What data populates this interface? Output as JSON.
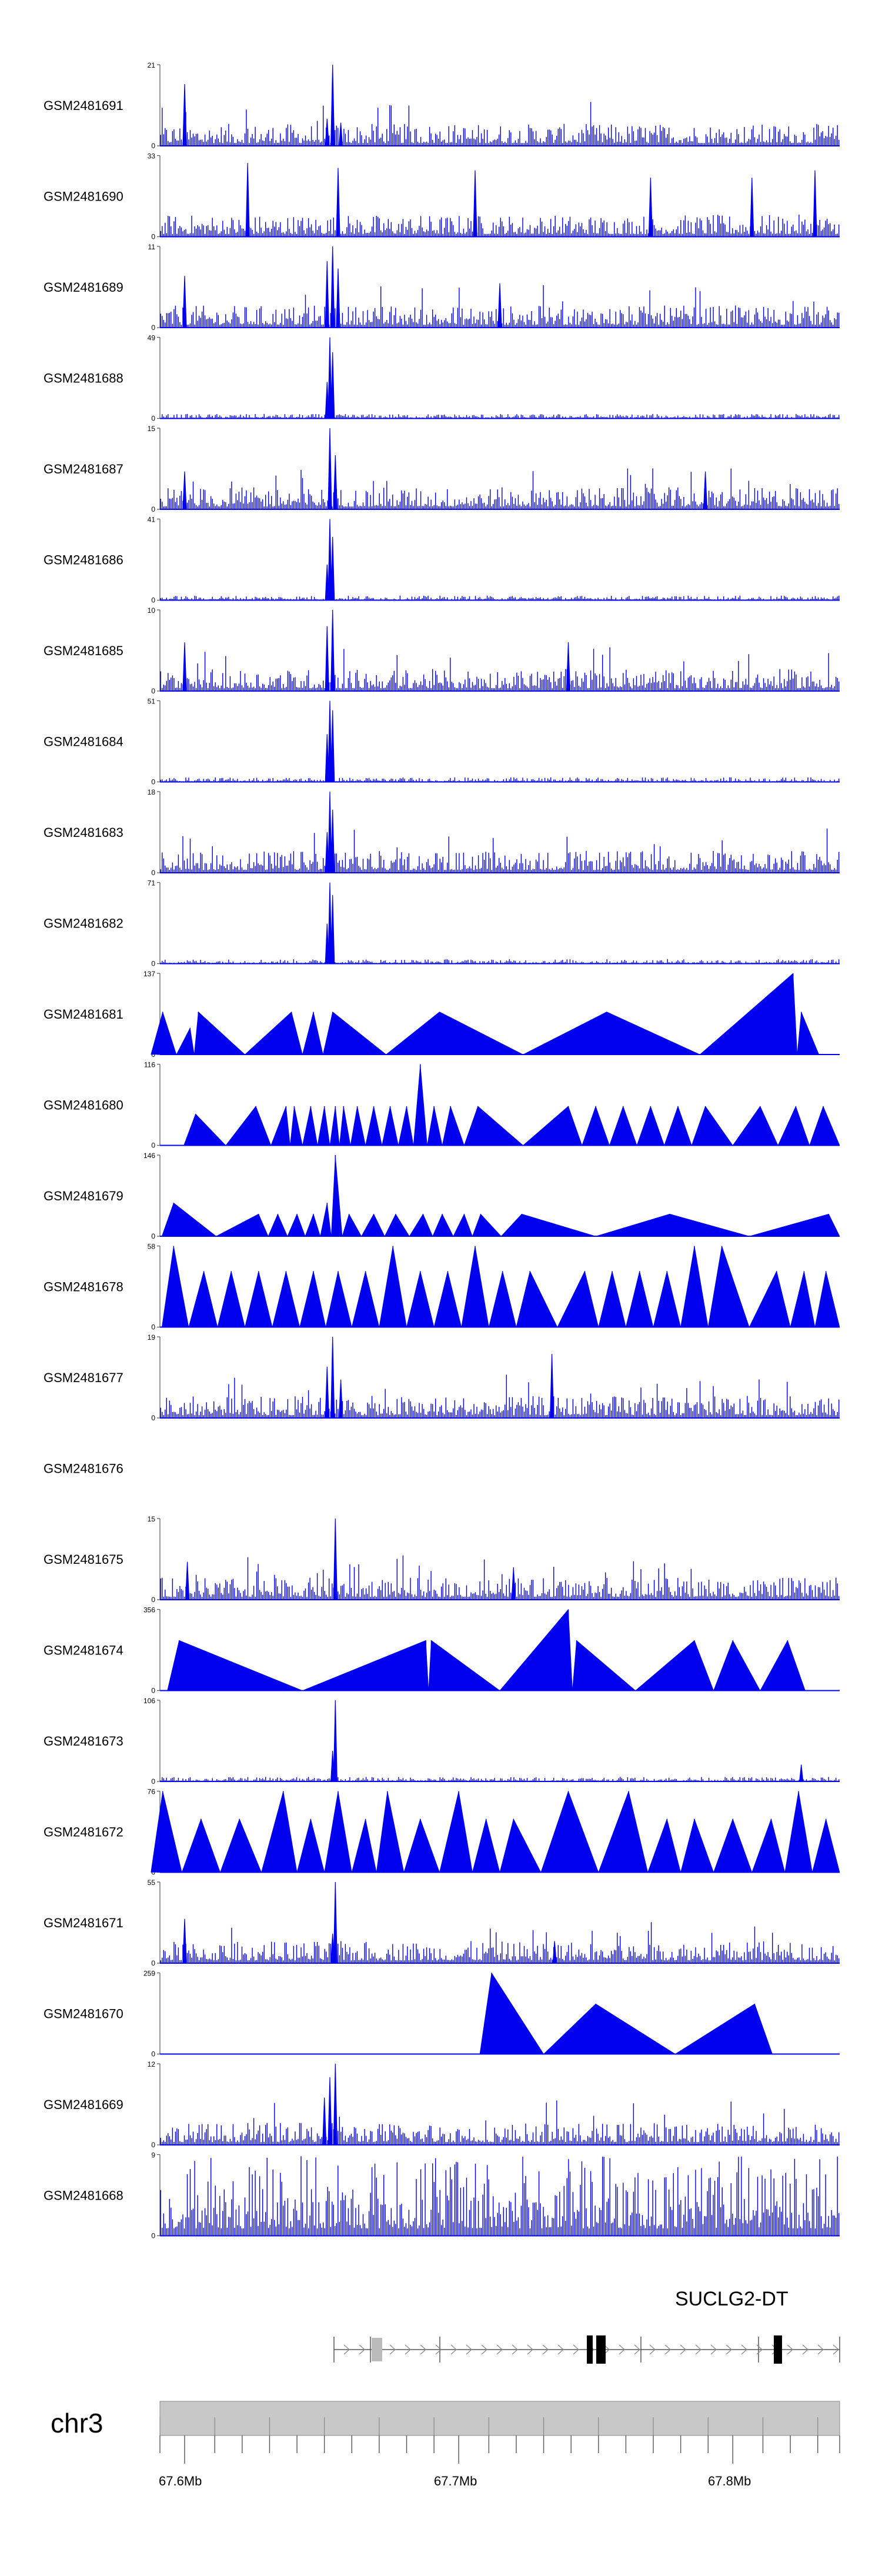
{
  "chart_data": {
    "type": "area",
    "colors": {
      "signal": "#0000ee",
      "axis": "#555555",
      "ideogram": "#c8c8c8",
      "gene": "#000000"
    },
    "x_range_mb": [
      67.591,
      67.839
    ],
    "series": [
      {
        "name": "GSM2481691",
        "ymax": 21,
        "mode": "dense",
        "peaks": [
          [
            67.6,
            16
          ],
          [
            67.654,
            21
          ],
          [
            67.652,
            7
          ],
          [
            67.657,
            6
          ]
        ]
      },
      {
        "name": "GSM2481690",
        "ymax": 33,
        "mode": "spiky",
        "peaks": [
          [
            67.623,
            30
          ],
          [
            67.656,
            28
          ],
          [
            67.706,
            27
          ],
          [
            67.77,
            24
          ],
          [
            67.807,
            24
          ],
          [
            67.83,
            27
          ]
        ]
      },
      {
        "name": "GSM2481689",
        "ymax": 11,
        "mode": "dense",
        "peaks": [
          [
            67.654,
            11
          ],
          [
            67.652,
            9
          ],
          [
            67.656,
            8
          ],
          [
            67.6,
            7
          ],
          [
            67.715,
            6
          ]
        ]
      },
      {
        "name": "GSM2481688",
        "ymax": 49,
        "mode": "sparse",
        "peaks": [
          [
            67.653,
            49
          ],
          [
            67.654,
            40
          ],
          [
            67.652,
            22
          ]
        ]
      },
      {
        "name": "GSM2481687",
        "ymax": 15,
        "mode": "dense",
        "peaks": [
          [
            67.653,
            15
          ],
          [
            67.655,
            10
          ],
          [
            67.6,
            7
          ],
          [
            67.79,
            7
          ]
        ]
      },
      {
        "name": "GSM2481686",
        "ymax": 41,
        "mode": "sparse",
        "peaks": [
          [
            67.653,
            41
          ],
          [
            67.654,
            32
          ],
          [
            67.652,
            18
          ]
        ]
      },
      {
        "name": "GSM2481685",
        "ymax": 10,
        "mode": "dense",
        "peaks": [
          [
            67.654,
            10
          ],
          [
            67.652,
            8
          ],
          [
            67.6,
            6
          ],
          [
            67.74,
            6
          ]
        ]
      },
      {
        "name": "GSM2481684",
        "ymax": 51,
        "mode": "sparse",
        "peaks": [
          [
            67.653,
            51
          ],
          [
            67.654,
            45
          ],
          [
            67.652,
            30
          ]
        ]
      },
      {
        "name": "GSM2481683",
        "ymax": 18,
        "mode": "dense",
        "peaks": [
          [
            67.653,
            18
          ],
          [
            67.654,
            14
          ],
          [
            67.652,
            9
          ]
        ]
      },
      {
        "name": "GSM2481682",
        "ymax": 71,
        "mode": "sparse",
        "peaks": [
          [
            67.653,
            71
          ],
          [
            67.654,
            60
          ],
          [
            67.652,
            35
          ]
        ]
      },
      {
        "name": "GSM2481681",
        "ymax": 137,
        "mode": "triangles",
        "peaks": [
          [
            67.592,
            72
          ],
          [
            67.602,
            45
          ],
          [
            67.605,
            72
          ],
          [
            67.639,
            72
          ],
          [
            67.647,
            72
          ],
          [
            67.654,
            72
          ],
          [
            67.693,
            72
          ],
          [
            67.754,
            72
          ],
          [
            67.822,
            137
          ],
          [
            67.825,
            72
          ]
        ]
      },
      {
        "name": "GSM2481680",
        "ymax": 116,
        "mode": "triangles",
        "peaks": [
          [
            67.604,
            45
          ],
          [
            67.626,
            56
          ],
          [
            67.637,
            56
          ],
          [
            67.64,
            56
          ],
          [
            67.646,
            56
          ],
          [
            67.651,
            56
          ],
          [
            67.655,
            56
          ],
          [
            67.658,
            56
          ],
          [
            67.663,
            56
          ],
          [
            67.669,
            56
          ],
          [
            67.675,
            56
          ],
          [
            67.681,
            56
          ],
          [
            67.686,
            116
          ],
          [
            67.691,
            56
          ],
          [
            67.697,
            56
          ],
          [
            67.707,
            56
          ],
          [
            67.74,
            56
          ],
          [
            67.75,
            56
          ],
          [
            67.76,
            56
          ],
          [
            67.77,
            56
          ],
          [
            67.78,
            56
          ],
          [
            67.79,
            56
          ],
          [
            67.81,
            56
          ],
          [
            67.823,
            56
          ],
          [
            67.833,
            56
          ]
        ]
      },
      {
        "name": "GSM2481679",
        "ymax": 146,
        "mode": "triangles",
        "peaks": [
          [
            67.596,
            60
          ],
          [
            67.627,
            40
          ],
          [
            67.634,
            40
          ],
          [
            67.641,
            40
          ],
          [
            67.647,
            40
          ],
          [
            67.652,
            60
          ],
          [
            67.655,
            146
          ],
          [
            67.66,
            40
          ],
          [
            67.669,
            40
          ],
          [
            67.677,
            40
          ],
          [
            67.687,
            40
          ],
          [
            67.694,
            40
          ],
          [
            67.702,
            40
          ],
          [
            67.708,
            40
          ],
          [
            67.723,
            40
          ],
          [
            67.777,
            40
          ],
          [
            67.835,
            40
          ]
        ]
      },
      {
        "name": "GSM2481678",
        "ymax": 58,
        "mode": "triangles",
        "peaks": [
          [
            67.596,
            58
          ],
          [
            67.607,
            40
          ],
          [
            67.617,
            40
          ],
          [
            67.627,
            40
          ],
          [
            67.637,
            40
          ],
          [
            67.647,
            40
          ],
          [
            67.656,
            40
          ],
          [
            67.666,
            40
          ],
          [
            67.676,
            58
          ],
          [
            67.686,
            40
          ],
          [
            67.696,
            40
          ],
          [
            67.706,
            58
          ],
          [
            67.716,
            40
          ],
          [
            67.726,
            40
          ],
          [
            67.746,
            40
          ],
          [
            67.756,
            40
          ],
          [
            67.766,
            40
          ],
          [
            67.776,
            40
          ],
          [
            67.786,
            58
          ],
          [
            67.796,
            58
          ],
          [
            67.816,
            40
          ],
          [
            67.826,
            40
          ],
          [
            67.834,
            40
          ]
        ]
      },
      {
        "name": "GSM2481677",
        "ymax": 19,
        "mode": "dense",
        "peaks": [
          [
            67.654,
            19
          ],
          [
            67.652,
            12
          ],
          [
            67.734,
            15
          ],
          [
            67.657,
            9
          ]
        ]
      },
      {
        "name": "GSM2481676",
        "ymax": null,
        "mode": "empty",
        "peaks": []
      },
      {
        "name": "GSM2481675",
        "ymax": 15,
        "mode": "dense",
        "peaks": [
          [
            67.655,
            15
          ],
          [
            67.601,
            7
          ],
          [
            67.72,
            6
          ]
        ]
      },
      {
        "name": "GSM2481674",
        "ymax": 356,
        "mode": "triangles",
        "peaks": [
          [
            67.598,
            220
          ],
          [
            67.688,
            220
          ],
          [
            67.69,
            220
          ],
          [
            67.74,
            356
          ],
          [
            67.743,
            220
          ],
          [
            67.786,
            220
          ],
          [
            67.8,
            220
          ],
          [
            67.82,
            220
          ]
        ]
      },
      {
        "name": "GSM2481673",
        "ymax": 106,
        "mode": "sparse",
        "peaks": [
          [
            67.655,
            106
          ],
          [
            67.654,
            40
          ],
          [
            67.825,
            22
          ]
        ]
      },
      {
        "name": "GSM2481672",
        "ymax": 76,
        "mode": "triangles",
        "peaks": [
          [
            67.592,
            76
          ],
          [
            67.606,
            50
          ],
          [
            67.62,
            50
          ],
          [
            67.636,
            76
          ],
          [
            67.646,
            50
          ],
          [
            67.656,
            76
          ],
          [
            67.666,
            50
          ],
          [
            67.674,
            76
          ],
          [
            67.686,
            50
          ],
          [
            67.7,
            76
          ],
          [
            67.71,
            50
          ],
          [
            67.72,
            50
          ],
          [
            67.74,
            76
          ],
          [
            67.762,
            76
          ],
          [
            67.776,
            50
          ],
          [
            67.786,
            50
          ],
          [
            67.8,
            50
          ],
          [
            67.814,
            50
          ],
          [
            67.824,
            76
          ],
          [
            67.834,
            50
          ]
        ]
      },
      {
        "name": "GSM2481671",
        "ymax": 55,
        "mode": "dense",
        "peaks": [
          [
            67.655,
            55
          ],
          [
            67.654,
            20
          ],
          [
            67.6,
            30
          ],
          [
            67.735,
            15
          ]
        ]
      },
      {
        "name": "GSM2481670",
        "ymax": 259,
        "mode": "triangles",
        "peaks": [
          [
            67.712,
            259
          ],
          [
            67.75,
            160
          ],
          [
            67.808,
            160
          ]
        ]
      },
      {
        "name": "GSM2481669",
        "ymax": 12,
        "mode": "dense",
        "peaks": [
          [
            67.655,
            12
          ],
          [
            67.653,
            10
          ],
          [
            67.651,
            7
          ]
        ]
      },
      {
        "name": "GSM2481668",
        "ymax": 9,
        "mode": "uniform",
        "peaks": []
      }
    ],
    "gene": {
      "name": "SUCLG2-DT"
    },
    "chromosome": {
      "name": "chr3"
    },
    "ticks": [
      67.591,
      67.6,
      67.611,
      67.621,
      67.631,
      67.641,
      67.651,
      67.661,
      67.671,
      67.681,
      67.691,
      67.7,
      67.711,
      67.721,
      67.731,
      67.741,
      67.751,
      67.761,
      67.771,
      67.781,
      67.791,
      67.8,
      67.811,
      67.821,
      67.831,
      67.839
    ],
    "tick_labels": [
      {
        "value": 67.6,
        "label": "67.6Mb"
      },
      {
        "value": 67.7,
        "label": "67.7Mb"
      },
      {
        "value": 67.8,
        "label": "67.8Mb"
      }
    ]
  }
}
